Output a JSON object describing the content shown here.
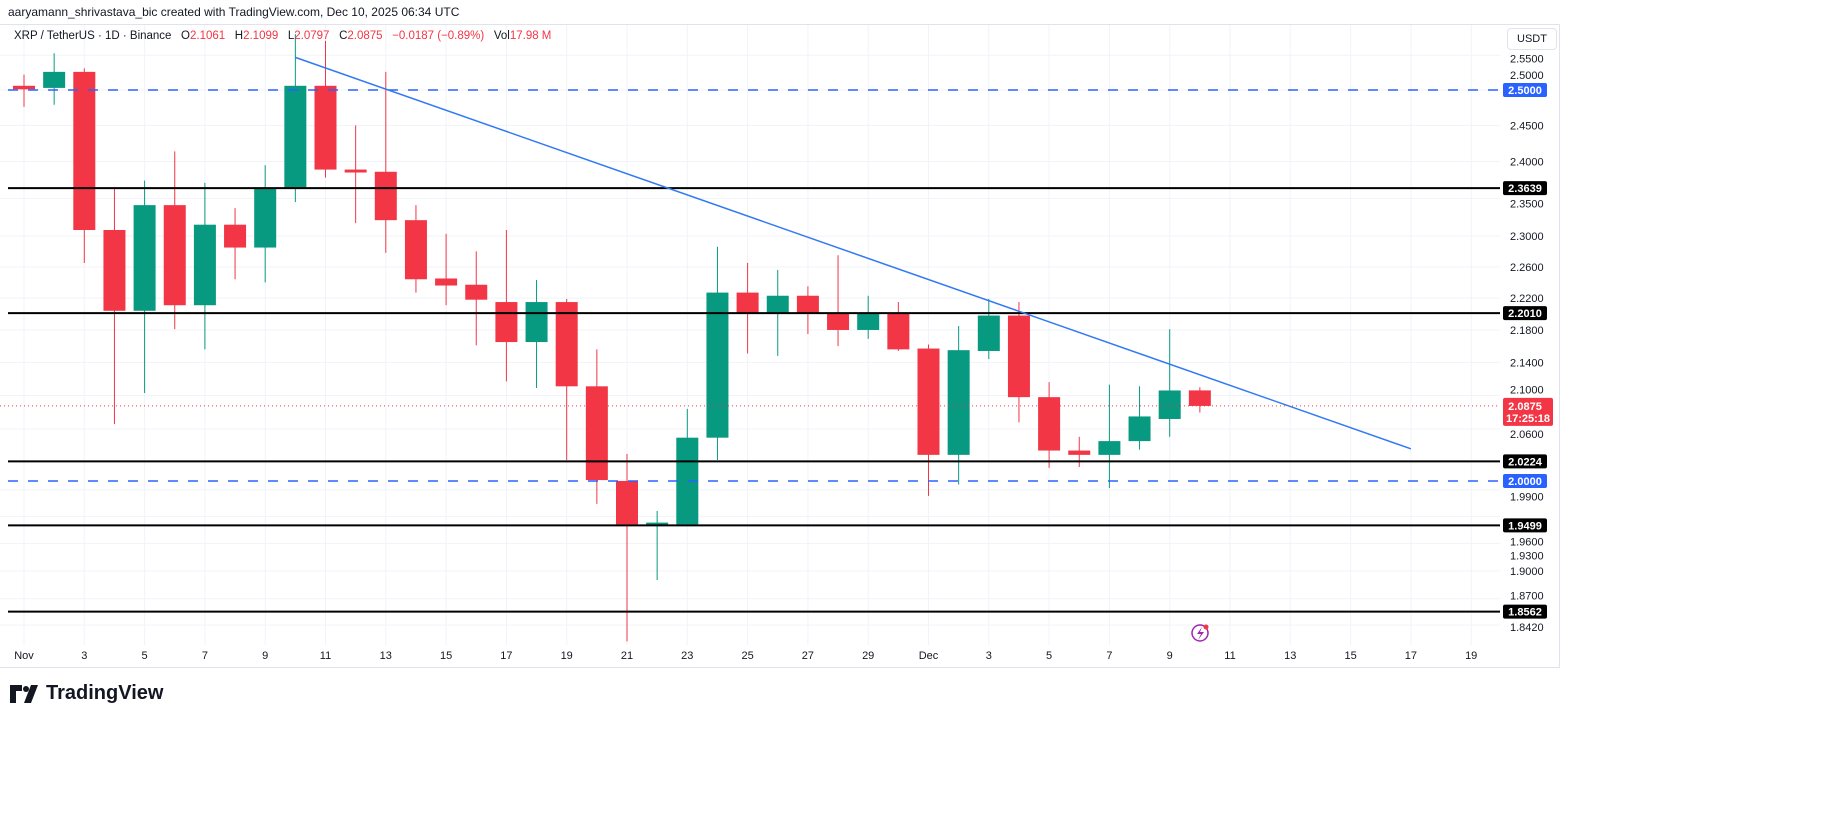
{
  "credit": "aaryamann_shrivastava_bic created with TradingView.com, Dec 10, 2025 06:34 UTC",
  "legend": {
    "symbol": "XRP / TetherUS · 1D · Binance",
    "o_label": "O",
    "o": "2.1061",
    "h_label": "H",
    "h": "2.1099",
    "l_label": "L",
    "l": "2.0797",
    "c_label": "C",
    "c": "2.0875",
    "change": "−0.0187 (−0.89%)",
    "vol_label": "Vol",
    "vol": "17.98 M"
  },
  "currency_unit": "USDT",
  "footer_logo": "TradingView",
  "colors": {
    "up": "#089981",
    "down": "#F23645",
    "trendline": "#3179F5",
    "dashed_level": "#2962FF",
    "level": "#000000",
    "last_price": "#F23645",
    "alert_icon": "#9C27B0"
  },
  "chart_data": {
    "type": "candlestick",
    "y_scale": "log",
    "ylim": [
      1.815,
      2.6
    ],
    "grid": true,
    "x_tick_labels": [
      "Nov",
      "3",
      "5",
      "7",
      "9",
      "11",
      "13",
      "15",
      "17",
      "19",
      "21",
      "23",
      "25",
      "27",
      "29",
      "Dec",
      "3",
      "5",
      "7",
      "9",
      "11",
      "13",
      "15",
      "17",
      "19"
    ],
    "y_tick_labels": [
      "2.5500",
      "2.5000",
      "2.4500",
      "2.4000",
      "2.3500",
      "2.3000",
      "2.2600",
      "2.2200",
      "2.1800",
      "2.1400",
      "2.1000",
      "2.0600",
      "1.9900",
      "1.9600",
      "1.9300",
      "1.9000",
      "1.8700",
      "1.8420"
    ],
    "candles": [
      {
        "date": "2025-11-01",
        "o": 2.506,
        "h": 2.522,
        "l": 2.476,
        "c": 2.501
      },
      {
        "date": "2025-11-02",
        "o": 2.503,
        "h": 2.553,
        "l": 2.479,
        "c": 2.526
      },
      {
        "date": "2025-11-03",
        "o": 2.526,
        "h": 2.531,
        "l": 2.265,
        "c": 2.308
      },
      {
        "date": "2025-11-04",
        "o": 2.308,
        "h": 2.365,
        "l": 2.066,
        "c": 2.204
      },
      {
        "date": "2025-11-05",
        "o": 2.204,
        "h": 2.374,
        "l": 2.103,
        "c": 2.341
      },
      {
        "date": "2025-11-06",
        "o": 2.341,
        "h": 2.414,
        "l": 2.181,
        "c": 2.211
      },
      {
        "date": "2025-11-07",
        "o": 2.211,
        "h": 2.371,
        "l": 2.156,
        "c": 2.315
      },
      {
        "date": "2025-11-08",
        "o": 2.315,
        "h": 2.337,
        "l": 2.244,
        "c": 2.285
      },
      {
        "date": "2025-11-09",
        "o": 2.285,
        "h": 2.395,
        "l": 2.24,
        "c": 2.364
      },
      {
        "date": "2025-11-10",
        "o": 2.364,
        "h": 2.581,
        "l": 2.345,
        "c": 2.506
      },
      {
        "date": "2025-11-11",
        "o": 2.506,
        "h": 2.571,
        "l": 2.378,
        "c": 2.389
      },
      {
        "date": "2025-11-12",
        "o": 2.389,
        "h": 2.45,
        "l": 2.317,
        "c": 2.385
      },
      {
        "date": "2025-11-13",
        "o": 2.386,
        "h": 2.526,
        "l": 2.278,
        "c": 2.321
      },
      {
        "date": "2025-11-14",
        "o": 2.321,
        "h": 2.341,
        "l": 2.227,
        "c": 2.244
      },
      {
        "date": "2025-11-15",
        "o": 2.245,
        "h": 2.303,
        "l": 2.211,
        "c": 2.236
      },
      {
        "date": "2025-11-16",
        "o": 2.237,
        "h": 2.28,
        "l": 2.161,
        "c": 2.218
      },
      {
        "date": "2025-11-17",
        "o": 2.215,
        "h": 2.308,
        "l": 2.117,
        "c": 2.165
      },
      {
        "date": "2025-11-18",
        "o": 2.165,
        "h": 2.243,
        "l": 2.109,
        "c": 2.215
      },
      {
        "date": "2025-11-19",
        "o": 2.215,
        "h": 2.219,
        "l": 2.024,
        "c": 2.111
      },
      {
        "date": "2025-11-20",
        "o": 2.111,
        "h": 2.156,
        "l": 1.974,
        "c": 2.001
      },
      {
        "date": "2025-11-21",
        "o": 2.0,
        "h": 2.031,
        "l": 1.825,
        "c": 1.951
      },
      {
        "date": "2025-11-22",
        "o": 1.951,
        "h": 1.966,
        "l": 1.89,
        "c": 1.953
      },
      {
        "date": "2025-11-23",
        "o": 1.951,
        "h": 2.084,
        "l": 1.951,
        "c": 2.05
      },
      {
        "date": "2025-11-24",
        "o": 2.05,
        "h": 2.286,
        "l": 2.024,
        "c": 2.227
      },
      {
        "date": "2025-11-25",
        "o": 2.227,
        "h": 2.265,
        "l": 2.151,
        "c": 2.201
      },
      {
        "date": "2025-11-26",
        "o": 2.201,
        "h": 2.256,
        "l": 2.148,
        "c": 2.223
      },
      {
        "date": "2025-11-27",
        "o": 2.223,
        "h": 2.235,
        "l": 2.175,
        "c": 2.2
      },
      {
        "date": "2025-11-28",
        "o": 2.201,
        "h": 2.275,
        "l": 2.16,
        "c": 2.18
      },
      {
        "date": "2025-11-29",
        "o": 2.18,
        "h": 2.223,
        "l": 2.169,
        "c": 2.201
      },
      {
        "date": "2025-11-30",
        "o": 2.201,
        "h": 2.215,
        "l": 2.154,
        "c": 2.156
      },
      {
        "date": "2025-12-01",
        "o": 2.157,
        "h": 2.162,
        "l": 1.983,
        "c": 2.03
      },
      {
        "date": "2025-12-02",
        "o": 2.03,
        "h": 2.185,
        "l": 1.996,
        "c": 2.155
      },
      {
        "date": "2025-12-03",
        "o": 2.154,
        "h": 2.219,
        "l": 2.144,
        "c": 2.198
      },
      {
        "date": "2025-12-04",
        "o": 2.198,
        "h": 2.215,
        "l": 2.068,
        "c": 2.098
      },
      {
        "date": "2025-12-05",
        "o": 2.098,
        "h": 2.116,
        "l": 2.015,
        "c": 2.035
      },
      {
        "date": "2025-12-06",
        "o": 2.035,
        "h": 2.051,
        "l": 2.016,
        "c": 2.03
      },
      {
        "date": "2025-12-07",
        "o": 2.03,
        "h": 2.113,
        "l": 1.992,
        "c": 2.046
      },
      {
        "date": "2025-12-08",
        "o": 2.046,
        "h": 2.111,
        "l": 2.036,
        "c": 2.075
      },
      {
        "date": "2025-12-09",
        "o": 2.072,
        "h": 2.181,
        "l": 2.051,
        "c": 2.106
      },
      {
        "date": "2025-12-10",
        "o": 2.1061,
        "h": 2.1099,
        "l": 2.0797,
        "c": 2.0875
      }
    ],
    "horizontal_levels": [
      {
        "price": 2.5,
        "label": "2.5000",
        "style": "dashed",
        "color": "#2962FF"
      },
      {
        "price": 2.3639,
        "label": "2.3639",
        "style": "solid",
        "color": "#000000"
      },
      {
        "price": 2.201,
        "label": "2.2010",
        "style": "solid",
        "color": "#000000"
      },
      {
        "price": 2.0224,
        "label": "2.0224",
        "style": "solid",
        "color": "#000000"
      },
      {
        "price": 2.0,
        "label": "2.0000",
        "style": "dashed",
        "color": "#2962FF"
      },
      {
        "price": 1.9499,
        "label": "1.9499",
        "style": "solid",
        "color": "#000000"
      },
      {
        "price": 1.8562,
        "label": "1.8562",
        "style": "solid",
        "color": "#000000"
      }
    ],
    "trendline": {
      "start": {
        "date": "2025-11-10",
        "price": 2.547
      },
      "end": {
        "date": "2025-12-17",
        "price": 2.037
      }
    },
    "last_price": {
      "price": 2.0875,
      "label": "2.0875",
      "countdown": "17:25:18"
    }
  }
}
